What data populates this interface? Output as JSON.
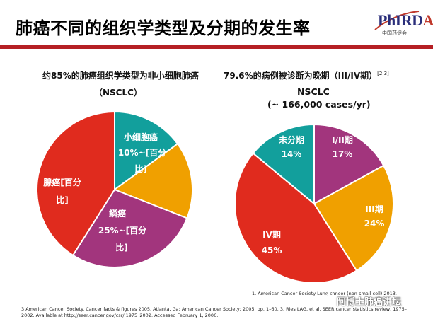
{
  "slide": {
    "title": "肺癌不同的组织学类型及分期的发生率",
    "logo_text_a": "PhIRD",
    "logo_text_b": "A",
    "logo_sub": "中国药促会"
  },
  "left_heading": {
    "line1": "约85%的肺癌组织学类型为非小细胞肺癌",
    "line2": "（NSCLC）"
  },
  "right_heading": {
    "line1": "79.6%的病例被诊断为晚期（III/IV期）",
    "sup": "[2,3]",
    "line2": "NSCLC",
    "line3": "(~ 166,000  cases/yr)"
  },
  "chart_data": [
    {
      "type": "pie",
      "title": "",
      "slices": [
        {
          "label": "小细胞癌 10%~[百分比]",
          "value": 15,
          "color": "#129f9c"
        },
        {
          "label": "",
          "value": 16,
          "color": "#f0a000"
        },
        {
          "label": "鳞癌 25%~[百分比]",
          "value": 28,
          "color": "#a2357d"
        },
        {
          "label": "腺癌[百分比]",
          "value": 41,
          "color": "#e02b1e"
        }
      ],
      "labels": {
        "teal_l1": "小细胞癌",
        "teal_l2": "10%~[百分",
        "teal_l3": "比]",
        "purple_l1": "鳞癌",
        "purple_l2": "25%~[百分",
        "purple_l3": "比]",
        "red_l1": "腺癌[百分",
        "red_l2": "比]"
      }
    },
    {
      "type": "pie",
      "title": "NSCLC (~ 166,000 cases/yr)",
      "slices": [
        {
          "label": "I/II期",
          "value": 17,
          "pct": "17%",
          "color": "#a2357d"
        },
        {
          "label": "III期",
          "value": 24,
          "pct": "24%",
          "color": "#f0a000"
        },
        {
          "label": "IV期",
          "value": 45,
          "pct": "45%",
          "color": "#e02b1e"
        },
        {
          "label": "未分期",
          "value": 14,
          "pct": "14%",
          "color": "#129f9c"
        }
      ]
    }
  ],
  "references": {
    "ref1": "1. American  Cancer  Society  Lung  cancer  (non-small cell) 2013.",
    "ref3": "3 American  Cancer  Society.  Cancer facts & figures 2005. Atlanta,  Ga: American  Cancer  Society;  2005.  pp. 1–60. 3. Ries LAG, et al. SEER  cancer statistics  review,  1975–2002.   Available   at   http://seer.cancer.gov/csr/   1975_2002.   Accessed  February  1, 2006."
  },
  "watermark": "阿博士肺癌讲坛"
}
